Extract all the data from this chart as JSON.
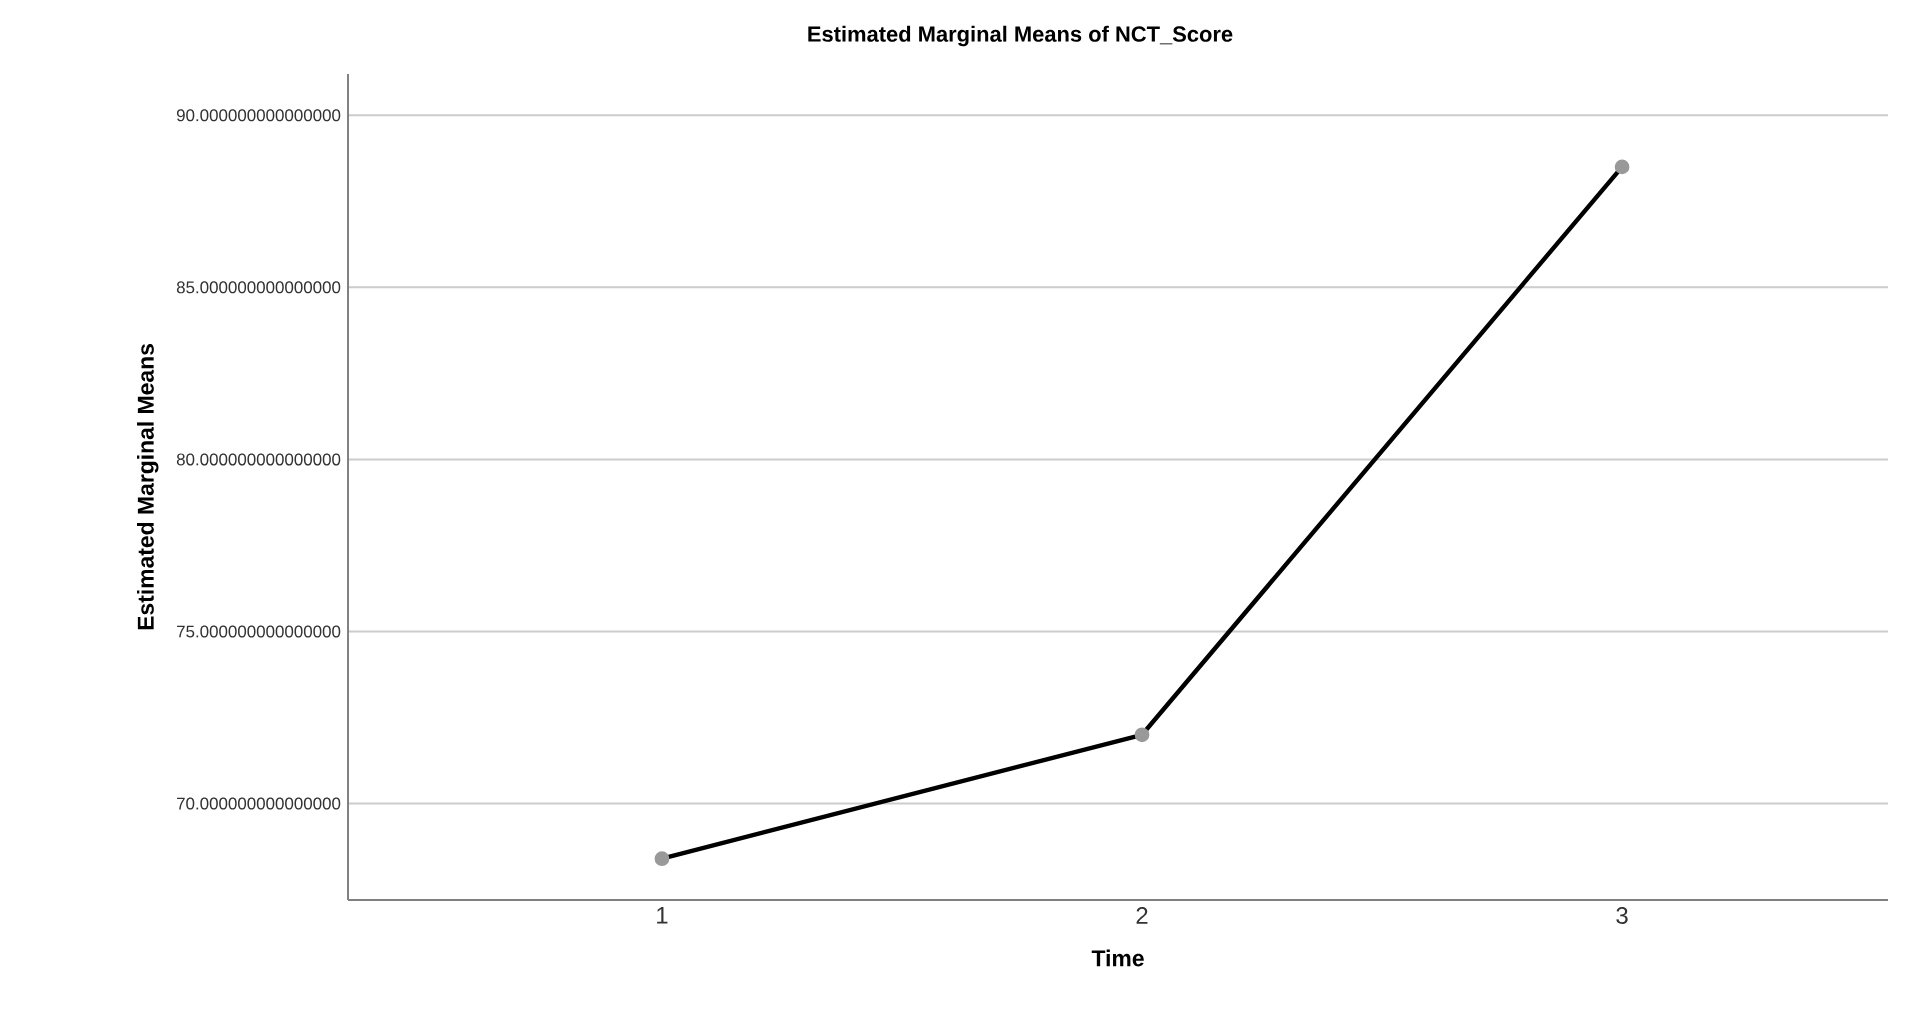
{
  "chart_data": {
    "type": "line",
    "title": "Estimated Marginal Means of NCT_Score",
    "xlabel": "Time",
    "ylabel": "Estimated Marginal Means",
    "categories": [
      "1",
      "2",
      "3"
    ],
    "series": [
      {
        "color": "#000000",
        "values": [
          68.4,
          72.0,
          88.5
        ]
      }
    ],
    "ylim": [
      67.2,
      91.2
    ],
    "yticks": [
      {
        "value": 70,
        "label": "70.000000000000000"
      },
      {
        "value": 75,
        "label": "75.000000000000000"
      },
      {
        "value": 80,
        "label": "80.000000000000000"
      },
      {
        "value": 85,
        "label": "85.000000000000000"
      },
      {
        "value": 90,
        "label": "90.000000000000000"
      }
    ],
    "grid": "y",
    "marker": "circle",
    "line_style": "solid"
  }
}
